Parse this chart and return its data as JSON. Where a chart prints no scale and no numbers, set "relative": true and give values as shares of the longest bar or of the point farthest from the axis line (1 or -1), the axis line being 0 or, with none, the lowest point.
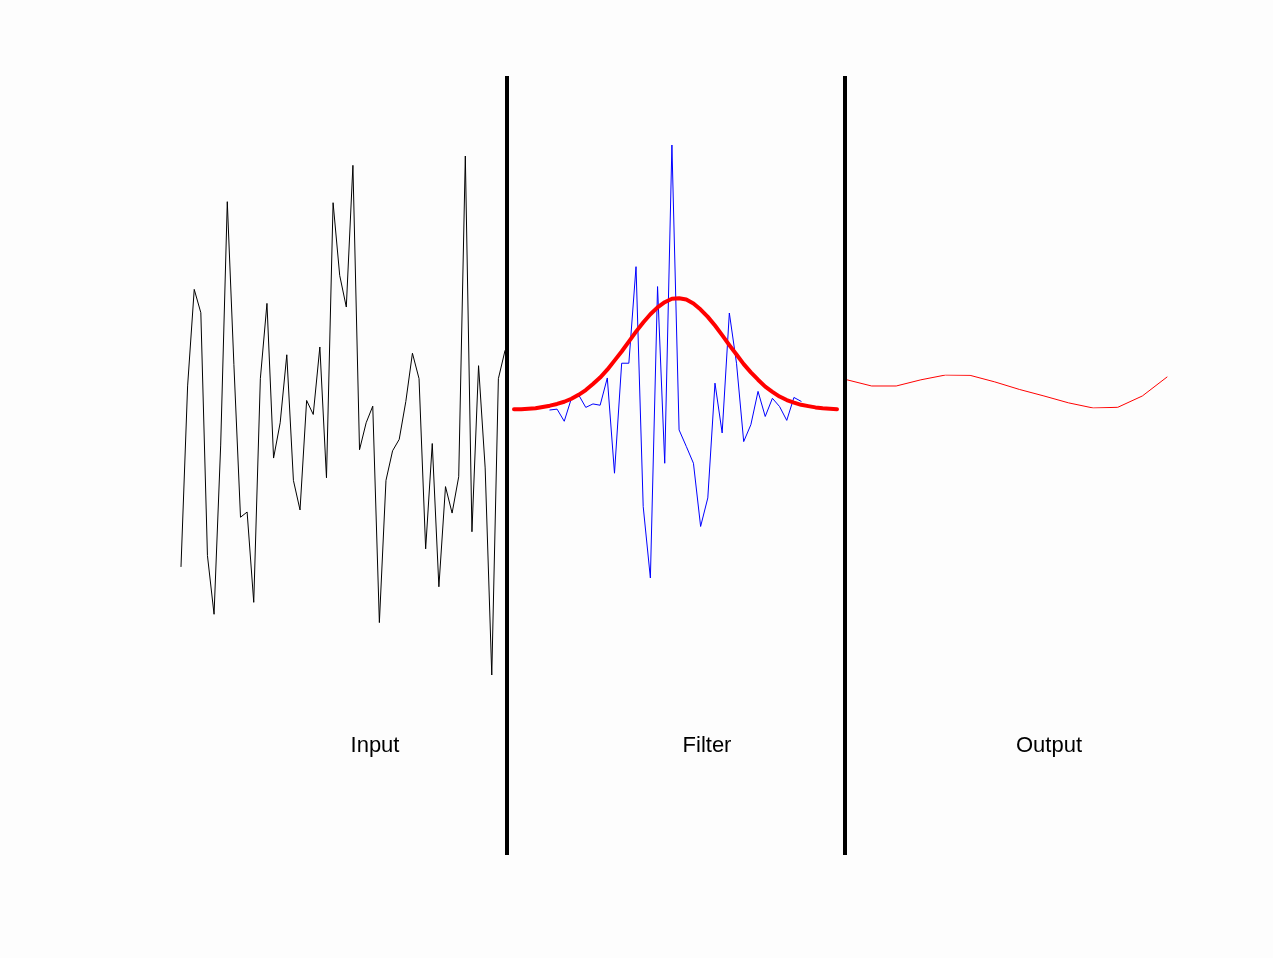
{
  "chart_data": [
    {
      "type": "line",
      "relative": true,
      "xlabel": "Input",
      "marker": "none",
      "categories": [
        null,
        null,
        null,
        null,
        null,
        null,
        null,
        null,
        null,
        null,
        null,
        null,
        null,
        null,
        null,
        null,
        null,
        null,
        null,
        null,
        null,
        null,
        null,
        null,
        null,
        null,
        null,
        null,
        null,
        null,
        null,
        null,
        null,
        null,
        null,
        null,
        null,
        null,
        null,
        null,
        null,
        null,
        null,
        null,
        null,
        null,
        null,
        null,
        null,
        null
      ],
      "series": [
        {
          "color": "#000000",
          "values": [
            0.209,
            0.557,
            0.743,
            0.698,
            0.23,
            0.117,
            0.443,
            0.912,
            0.598,
            0.304,
            0.314,
            0.14,
            0.571,
            0.716,
            0.418,
            0.486,
            0.617,
            0.375,
            0.318,
            0.529,
            0.502,
            0.632,
            0.38,
            0.91,
            0.77,
            0.709,
            0.982,
            0.434,
            0.486,
            0.518,
            0.101,
            0.375,
            0.432,
            0.454,
            0.527,
            0.62,
            0.571,
            0.243,
            0.446,
            0.17,
            0.363,
            0.312,
            0.382,
            1,
            0.276,
            0.596,
            0.399,
            0,
            0.571,
            0.625
          ]
        }
      ]
    },
    {
      "type": "line",
      "relative": true,
      "xlabel": "Filter",
      "marker": "none",
      "categories": [
        null,
        null,
        null,
        null,
        null,
        null,
        null,
        null,
        null,
        null,
        null,
        null,
        null,
        null,
        null,
        null,
        null,
        null,
        null,
        null,
        null,
        null,
        null,
        null,
        null,
        null,
        null,
        null,
        null,
        null,
        null,
        null,
        null,
        null,
        null,
        null,
        null,
        null,
        null,
        null,
        null,
        null,
        null,
        null,
        null,
        null
      ],
      "series": [
        {
          "color": "#0000ff",
          "values": [
            null,
            null,
            null,
            null,
            null,
            0.388,
            0.39,
            0.362,
            0.415,
            0.423,
            0.394,
            0.402,
            0.399,
            0.462,
            0.242,
            0.496,
            0.496,
            0.719,
            0.165,
            0,
            0.673,
            0.265,
            1,
            0.342,
            0.304,
            0.265,
            0.119,
            0.185,
            0.45,
            0.335,
            0.612,
            0.496,
            0.315,
            0.354,
            0.431,
            0.373,
            0.415,
            0.396,
            0.364,
            0.417,
            0.408,
            null,
            null,
            null,
            null,
            null
          ]
        },
        {
          "color": "#ff0000",
          "values": [
            0.39,
            0.39,
            0.391,
            0.392,
            0.395,
            0.398,
            0.402,
            0.407,
            0.414,
            0.423,
            0.434,
            0.448,
            0.463,
            0.481,
            0.502,
            0.523,
            0.546,
            0.569,
            0.59,
            0.609,
            0.625,
            0.637,
            0.645,
            0.646,
            0.643,
            0.634,
            0.62,
            0.603,
            0.583,
            0.561,
            0.538,
            0.516,
            0.494,
            0.475,
            0.458,
            0.442,
            0.43,
            0.419,
            0.411,
            0.405,
            0.4,
            0.397,
            0.394,
            0.392,
            0.391,
            0.39
          ]
        }
      ]
    },
    {
      "type": "line",
      "relative": true,
      "xlabel": "Output",
      "marker": "none",
      "categories": [
        null,
        null,
        null,
        null,
        null,
        null,
        null,
        null,
        null,
        null,
        null,
        null,
        null,
        null
      ],
      "series": [
        {
          "color": "#ff0000",
          "values": [
            0.854,
            0.667,
            0.667,
            0.854,
            1,
            0.99,
            0.792,
            0.563,
            0.365,
            0.156,
            0,
            0.021,
            0.365,
            0.938
          ]
        }
      ]
    }
  ]
}
